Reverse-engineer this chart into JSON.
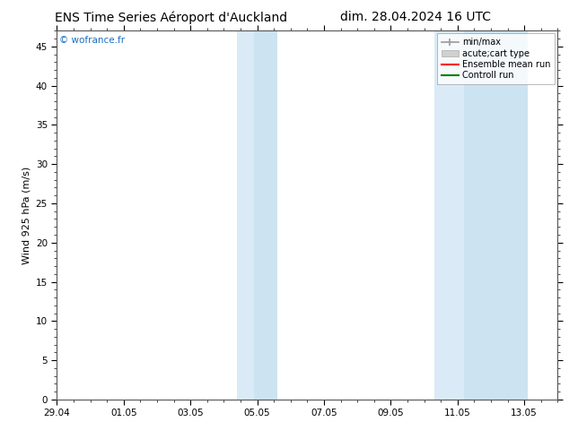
{
  "title_left": "ENS Time Series Aéroport d'Auckland",
  "title_right": "dim. 28.04.2024 16 UTC",
  "ylabel": "Wind 925 hPa (m/s)",
  "watermark": "© wofrance.fr",
  "ylim": [
    0,
    47
  ],
  "yticks": [
    0,
    5,
    10,
    15,
    20,
    25,
    30,
    35,
    40,
    45
  ],
  "xtick_labels": [
    "29.04",
    "01.05",
    "03.05",
    "05.05",
    "07.05",
    "09.05",
    "11.05",
    "13.05"
  ],
  "xtick_positions": [
    0,
    2,
    4,
    6,
    8,
    10,
    12,
    14
  ],
  "xlim": [
    0,
    15
  ],
  "shaded_bands": [
    {
      "x_start": 5.33,
      "x_end": 5.83,
      "color": "#ddeef8"
    },
    {
      "x_start": 5.83,
      "x_end": 6.5,
      "color": "#d0e8f5"
    },
    {
      "x_start": 11.0,
      "x_end": 11.5,
      "color": "#ddeef8"
    },
    {
      "x_start": 11.5,
      "x_end": 12.0,
      "color": "#d0e8f5"
    },
    {
      "x_start": 12.0,
      "x_end": 12.5,
      "color": "#ddeef8"
    },
    {
      "x_start": 12.5,
      "x_end": 15.0,
      "color": "#d0e8f5"
    }
  ],
  "bg_color": "#ffffff",
  "plot_bg_color": "#ffffff",
  "border_color": "#555555",
  "title_fontsize": 10,
  "label_fontsize": 8,
  "tick_fontsize": 7.5,
  "watermark_color": "#1a6ebd",
  "legend_font_size": 7
}
